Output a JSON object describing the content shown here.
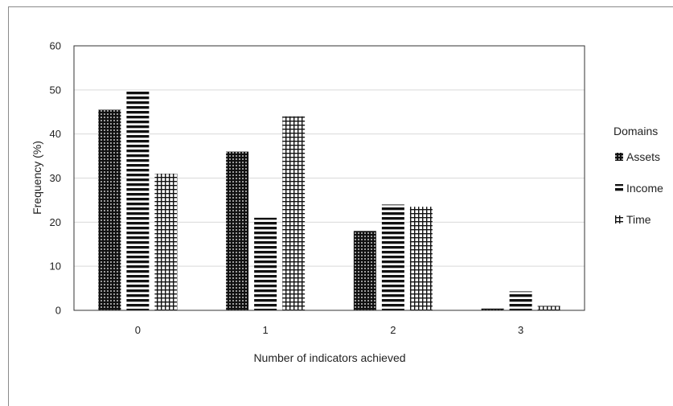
{
  "chart_data": {
    "type": "bar",
    "title": "",
    "xlabel": "Number of indicators achieved",
    "ylabel": "Frequency (%)",
    "categories": [
      "0",
      "1",
      "2",
      "3"
    ],
    "ylim": [
      0,
      60
    ],
    "yticks": [
      "0",
      "10",
      "20",
      "30",
      "40",
      "50",
      "60"
    ],
    "grid": true,
    "legend_title": "Domains",
    "legend_position": "right",
    "series": [
      {
        "name": "Assets",
        "pattern": "dots",
        "color": "#111111",
        "values": [
          45.5,
          36,
          18,
          0.4
        ]
      },
      {
        "name": "Income",
        "pattern": "horizontal-stripes",
        "color": "#111111",
        "values": [
          49.8,
          21,
          24,
          4.3
        ]
      },
      {
        "name": "Time",
        "pattern": "grid",
        "color": "#111111",
        "values": [
          31,
          44,
          23.5,
          1
        ]
      }
    ]
  }
}
